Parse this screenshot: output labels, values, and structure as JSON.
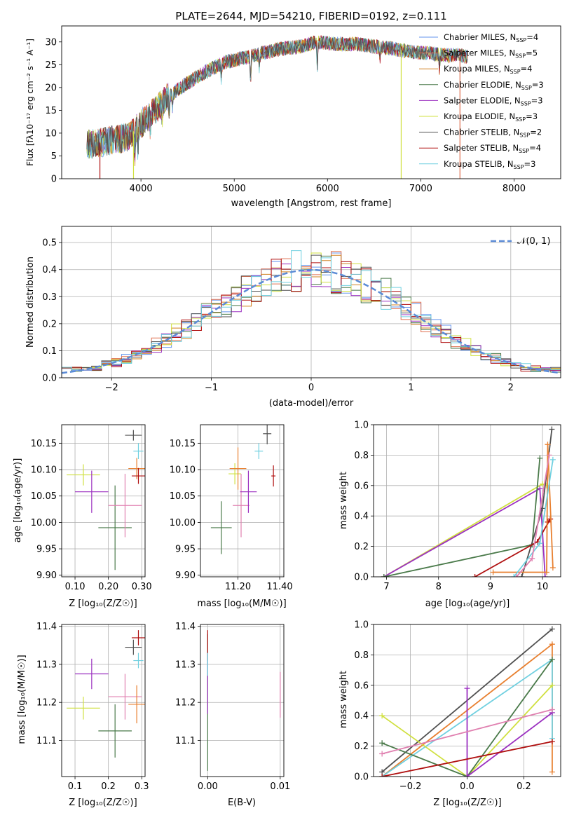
{
  "colors": {
    "c1": "#6495ed",
    "c2": "#e07050",
    "c3": "#d08020",
    "c4": "#4a7a4a",
    "c5": "#9b30c0",
    "c6": "#d0e040",
    "c7": "#505050",
    "c8": "#b01010",
    "c9": "#70d0e0",
    "pink": "#e080b0",
    "orange": "#e88030",
    "normal": "#5b8bd6"
  },
  "chart_data": [
    {
      "id": "spectrum",
      "type": "line",
      "title": "PLATE=2644, MJD=54210, FIBERID=0192, z=0.111",
      "xlabel": "wavelength [Angstrom, rest frame]",
      "ylabel": "Flux [fλ10⁻¹⁷ erg cm⁻² s⁻¹ A⁻¹]",
      "xlim": [
        3150,
        8500
      ],
      "ylim": [
        0,
        33.5
      ],
      "xticks": [
        4000,
        5000,
        6000,
        7000,
        8000
      ],
      "yticks": [
        0,
        5,
        10,
        15,
        20,
        25,
        30
      ],
      "legend_position": "right",
      "legend": [
        {
          "label": "Chabrier MILES, N",
          "sub": "SSP",
          "suffix": "=4",
          "color": "c1"
        },
        {
          "label": "Salpeter MILES, N",
          "sub": "SSP",
          "suffix": "=5",
          "color": "c2"
        },
        {
          "label": "Kroupa MILES, N",
          "sub": "SSP",
          "suffix": "=4",
          "color": "c3"
        },
        {
          "label": "Chabrier ELODIE, N",
          "sub": "SSP",
          "suffix": "=3",
          "color": "c4"
        },
        {
          "label": "Salpeter ELODIE, N",
          "sub": "SSP",
          "suffix": "=3",
          "color": "c5"
        },
        {
          "label": "Kroupa ELODIE, N",
          "sub": "SSP",
          "suffix": "=3",
          "color": "c6"
        },
        {
          "label": "Chabrier STELIB, N",
          "sub": "SSP",
          "suffix": "=2",
          "color": "c7"
        },
        {
          "label": "Salpeter STELIB, N",
          "sub": "SSP",
          "suffix": "=4",
          "color": "c8"
        },
        {
          "label": "Kroupa STELIB, N",
          "sub": "SSP",
          "suffix": "=3",
          "color": "c9"
        }
      ],
      "continuum": [
        [
          3420,
          7.5
        ],
        [
          3550,
          7.8
        ],
        [
          3700,
          8.5
        ],
        [
          3850,
          9.0
        ],
        [
          3950,
          11.0
        ],
        [
          4100,
          14.0
        ],
        [
          4300,
          18.0
        ],
        [
          4500,
          21.0
        ],
        [
          4700,
          23.5
        ],
        [
          4900,
          25.5
        ],
        [
          5100,
          26.5
        ],
        [
          5300,
          27.5
        ],
        [
          5500,
          28.5
        ],
        [
          5700,
          29.0
        ],
        [
          5900,
          30.0
        ],
        [
          6100,
          29.5
        ],
        [
          6300,
          29.5
        ],
        [
          6500,
          29.0
        ],
        [
          6700,
          28.5
        ],
        [
          6900,
          27.8
        ],
        [
          7100,
          27.5
        ],
        [
          7300,
          27.0
        ],
        [
          7400,
          27.2
        ],
        [
          7500,
          26.8
        ]
      ],
      "absorption": [
        [
          3934,
          6.0
        ],
        [
          3968,
          5.0
        ],
        [
          4101,
          3.0
        ],
        [
          4227,
          3.0
        ],
        [
          4304,
          4.0
        ],
        [
          4340,
          3.0
        ],
        [
          4861,
          3.0
        ],
        [
          5175,
          5.5
        ],
        [
          5270,
          3.0
        ],
        [
          5890,
          6.0
        ],
        [
          6563,
          2.5
        ],
        [
          7200,
          3.0
        ]
      ],
      "drop_lines": [
        {
          "x": 3560,
          "color": "c8"
        },
        {
          "x": 3920,
          "color": "c6"
        },
        {
          "x": 6790,
          "color": "c6"
        },
        {
          "x": 7420,
          "color": "c2"
        }
      ]
    },
    {
      "id": "residuals",
      "type": "histogram",
      "xlabel": "(data-model)/error",
      "ylabel": "Normed distribution",
      "xlim": [
        -2.5,
        2.5
      ],
      "ylim": [
        0,
        0.56
      ],
      "xticks": [
        -2,
        -1,
        0,
        1,
        2
      ],
      "yticks": [
        0.0,
        0.1,
        0.2,
        0.3,
        0.4,
        0.5
      ],
      "grid": true,
      "legend": [
        {
          "label": "𝒩(0, 1)",
          "color": "normal"
        }
      ],
      "legend_position": "top-right",
      "bin_range": [
        -2.5,
        2.5
      ],
      "bin_count": 50,
      "series_colors": [
        "c1",
        "c2",
        "c3",
        "c4",
        "c5",
        "c6",
        "c7",
        "c8",
        "c9"
      ]
    },
    {
      "id": "age_vs_Z",
      "type": "errorbar",
      "xlabel": "Z [log₁₀(Z/Z☉)]",
      "ylabel": "age  [log₁₀(age/yr)]",
      "xlim": [
        0.06,
        0.31
      ],
      "ylim": [
        9.897,
        10.185
      ],
      "xticks": [
        0.1,
        0.2,
        0.3
      ],
      "yticks": [
        9.9,
        9.95,
        10.0,
        10.05,
        10.1,
        10.15
      ],
      "points": [
        {
          "x": 0.125,
          "xerr": 0.05,
          "y": 10.09,
          "yerr": 0.02,
          "color": "c6"
        },
        {
          "x": 0.15,
          "xerr": 0.05,
          "y": 10.058,
          "yerr": 0.04,
          "color": "c5"
        },
        {
          "x": 0.22,
          "xerr": 0.05,
          "y": 9.99,
          "yerr": 0.08,
          "color": "c4"
        },
        {
          "x": 0.25,
          "xerr": 0.05,
          "y": 10.032,
          "yerr": 0.06,
          "color": "pink"
        },
        {
          "x": 0.275,
          "xerr": 0.025,
          "y": 10.165,
          "yerr": 0.01,
          "color": "c7"
        },
        {
          "x": 0.285,
          "xerr": 0.025,
          "y": 10.102,
          "yerr": 0.02,
          "color": "orange"
        },
        {
          "x": 0.29,
          "xerr": 0.015,
          "y": 10.135,
          "yerr": 0.015,
          "color": "c9"
        },
        {
          "x": 0.29,
          "xerr": 0.02,
          "y": 10.088,
          "yerr": 0.015,
          "color": "c8"
        }
      ]
    },
    {
      "id": "age_vs_mass",
      "type": "errorbar",
      "xlabel": "mass [log₁₀(M/M☉)]",
      "ylabel": "",
      "xlim": [
        11.02,
        11.42
      ],
      "ylim": [
        9.897,
        10.185
      ],
      "xticks": [
        11.2,
        11.4
      ],
      "yticks": [
        9.9,
        9.95,
        10.0,
        10.05,
        10.1,
        10.15
      ],
      "points": [
        {
          "x": 11.12,
          "xerr": 0.05,
          "y": 9.99,
          "yerr": 0.05,
          "color": "c4"
        },
        {
          "x": 11.185,
          "xerr": 0.03,
          "y": 10.092,
          "yerr": 0.02,
          "color": "c6"
        },
        {
          "x": 11.2,
          "xerr": 0.04,
          "y": 10.102,
          "yerr": 0.04,
          "color": "orange"
        },
        {
          "x": 11.215,
          "xerr": 0.04,
          "y": 10.032,
          "yerr": 0.06,
          "color": "pink"
        },
        {
          "x": 11.25,
          "xerr": 0.04,
          "y": 10.058,
          "yerr": 0.04,
          "color": "c5"
        },
        {
          "x": 11.3,
          "xerr": 0.02,
          "y": 10.135,
          "yerr": 0.015,
          "color": "c9"
        },
        {
          "x": 11.34,
          "xerr": 0.02,
          "y": 10.168,
          "yerr": 0.02,
          "color": "c7"
        },
        {
          "x": 11.37,
          "xerr": 0.01,
          "y": 10.088,
          "yerr": 0.02,
          "color": "c8"
        }
      ]
    },
    {
      "id": "mass_weight_vs_age",
      "type": "line",
      "xlabel": "age  [log₁₀(age/yr)]",
      "ylabel": "mass weight",
      "xlim": [
        6.75,
        10.35
      ],
      "ylim": [
        0,
        1.0
      ],
      "xticks": [
        7,
        8,
        9,
        10
      ],
      "yticks": [
        0.0,
        0.2,
        0.4,
        0.6,
        0.8,
        1.0
      ],
      "grid": true,
      "series": [
        {
          "color": "c6",
          "points": [
            [
              6.95,
              0.0
            ],
            [
              10.0,
              0.61
            ],
            [
              10.08,
              0.6
            ]
          ]
        },
        {
          "color": "c5",
          "points": [
            [
              6.95,
              0.0
            ],
            [
              9.95,
              0.58
            ],
            [
              10.05,
              0.0
            ]
          ]
        },
        {
          "color": "c4",
          "points": [
            [
              6.95,
              0.0
            ],
            [
              9.8,
              0.21
            ],
            [
              9.95,
              0.78
            ]
          ]
        },
        {
          "color": "c7",
          "points": [
            [
              9.6,
              0.0
            ],
            [
              10.0,
              0.45
            ],
            [
              10.18,
              0.97
            ]
          ]
        },
        {
          "color": "c8",
          "points": [
            [
              8.7,
              0.0
            ],
            [
              9.9,
              0.23
            ],
            [
              10.15,
              0.38
            ],
            [
              10.1,
              0.36
            ]
          ]
        },
        {
          "color": "orange",
          "points": [
            [
              9.05,
              0.03
            ],
            [
              10.08,
              0.03
            ],
            [
              10.1,
              0.87
            ],
            [
              10.2,
              0.06
            ]
          ]
        },
        {
          "color": "c9",
          "points": [
            [
              9.45,
              0.0
            ],
            [
              9.95,
              0.22
            ],
            [
              10.2,
              0.77
            ]
          ]
        },
        {
          "color": "pink",
          "points": [
            [
              9.5,
              0.0
            ],
            [
              9.8,
              0.12
            ],
            [
              10.13,
              0.8
            ]
          ]
        }
      ]
    },
    {
      "id": "mass_vs_Z",
      "type": "errorbar",
      "xlabel": "Z [log₁₀(Z/Z☉)]",
      "ylabel": "mass [log₁₀(M/M☉)]",
      "xlim": [
        0.06,
        0.31
      ],
      "ylim": [
        11.005,
        11.405
      ],
      "xticks": [
        0.1,
        0.2,
        0.3
      ],
      "yticks": [
        11.1,
        11.2,
        11.3,
        11.4
      ],
      "points": [
        {
          "x": 0.125,
          "xerr": 0.05,
          "y": 11.185,
          "yerr": 0.03,
          "color": "c6"
        },
        {
          "x": 0.15,
          "xerr": 0.05,
          "y": 11.275,
          "yerr": 0.04,
          "color": "c5"
        },
        {
          "x": 0.22,
          "xerr": 0.05,
          "y": 11.125,
          "yerr": 0.07,
          "color": "c4"
        },
        {
          "x": 0.25,
          "xerr": 0.05,
          "y": 11.215,
          "yerr": 0.06,
          "color": "pink"
        },
        {
          "x": 0.275,
          "xerr": 0.025,
          "y": 11.345,
          "yerr": 0.02,
          "color": "c7"
        },
        {
          "x": 0.285,
          "xerr": 0.025,
          "y": 11.195,
          "yerr": 0.05,
          "color": "orange"
        },
        {
          "x": 0.29,
          "xerr": 0.015,
          "y": 11.31,
          "yerr": 0.02,
          "color": "c9"
        },
        {
          "x": 0.29,
          "xerr": 0.02,
          "y": 11.37,
          "yerr": 0.02,
          "color": "c8"
        }
      ]
    },
    {
      "id": "mass_vs_ebv",
      "type": "errorbar",
      "xlabel": "E(B-V)",
      "ylabel": "",
      "xlim": [
        -0.001,
        0.0105
      ],
      "ylim": [
        11.005,
        11.405
      ],
      "xticks": [
        0.0,
        0.01
      ],
      "yticks": [
        11.1,
        11.2,
        11.3,
        11.4
      ],
      "points": [
        {
          "x": 0.0,
          "xerr": 0,
          "y": 11.2,
          "yerr": 0.18,
          "color": "c4"
        },
        {
          "x": 0.0,
          "xerr": 0,
          "y": 11.25,
          "yerr": 0.08,
          "color": "c5"
        },
        {
          "x": 0.0,
          "xerr": 0,
          "y": 11.35,
          "yerr": 0.04,
          "color": "c8"
        },
        {
          "x": 0.0,
          "xerr": 0,
          "y": 11.3,
          "yerr": 0.03,
          "color": "c9"
        },
        {
          "x": 0.01,
          "xerr": 0,
          "y": 11.22,
          "yerr": 0.06,
          "color": "pink"
        }
      ]
    },
    {
      "id": "mass_weight_vs_Z",
      "type": "line",
      "xlabel": "Z [log₁₀(Z/Z☉)]",
      "ylabel": "mass weight",
      "xlim": [
        -0.33,
        0.33
      ],
      "ylim": [
        0,
        1.0
      ],
      "xticks": [
        -0.2,
        0.0,
        0.2
      ],
      "yticks": [
        0.0,
        0.2,
        0.4,
        0.6,
        0.8,
        1.0
      ],
      "grid": true,
      "series": [
        {
          "color": "c7",
          "points": [
            [
              -0.3,
              0.03
            ],
            [
              0.3,
              0.97
            ]
          ]
        },
        {
          "color": "orange",
          "points": [
            [
              -0.3,
              0.0
            ],
            [
              0.3,
              0.87
            ],
            [
              0.3,
              0.03
            ]
          ]
        },
        {
          "color": "c9",
          "points": [
            [
              -0.3,
              0.0
            ],
            [
              0.3,
              0.77
            ],
            [
              0.3,
              0.25
            ]
          ]
        },
        {
          "color": "c6",
          "points": [
            [
              -0.3,
              0.4
            ],
            [
              0.0,
              0.0
            ],
            [
              0.3,
              0.6
            ]
          ]
        },
        {
          "color": "c4",
          "points": [
            [
              -0.3,
              0.22
            ],
            [
              0.0,
              0.0
            ],
            [
              0.3,
              0.77
            ]
          ]
        },
        {
          "color": "c5",
          "points": [
            [
              0.0,
              0.58
            ],
            [
              0.0,
              0.0
            ],
            [
              0.3,
              0.42
            ]
          ]
        },
        {
          "color": "pink",
          "points": [
            [
              -0.3,
              0.15
            ],
            [
              0.3,
              0.44
            ]
          ]
        },
        {
          "color": "c8",
          "points": [
            [
              -0.3,
              0.0
            ],
            [
              0.3,
              0.23
            ]
          ]
        }
      ]
    }
  ]
}
